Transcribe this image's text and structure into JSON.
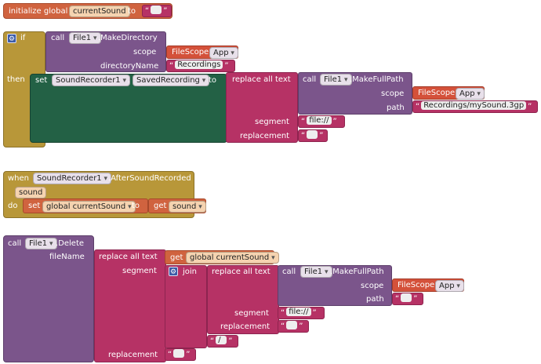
{
  "init_block": {
    "label": "initialize global",
    "var_name": "currentSound",
    "to": "to",
    "open_q": "“",
    "close_q": "”"
  },
  "if_block": {
    "if_label": "if",
    "then_label": "then",
    "call": "call",
    "component": "File1",
    "method": ".MakeDirectory",
    "scope_label": "scope",
    "fscope": "FileScope",
    "fscope_val": "App",
    "dirname_label": "directoryName",
    "dirname_val": "Recordings",
    "set": "set",
    "set_component": "SoundRecorder1",
    "dot": ".",
    "set_prop": "SavedRecording",
    "set_to": "to",
    "replace_all": "replace all text",
    "inner_call": "call",
    "inner_component": "File1",
    "inner_method": ".MakeFullPath",
    "inner_scope_label": "scope",
    "inner_fscope": "FileScope",
    "inner_fscope_val": "App",
    "path_label": "path",
    "path_val": "Recordings/mySound.3gp",
    "segment_label": "segment",
    "segment_val": "file://",
    "replacement_label": "replacement"
  },
  "event_block": {
    "when": "when",
    "component": "SoundRecorder1",
    "event": ".AfterSoundRecorded",
    "param": "sound",
    "do": "do",
    "set": "set",
    "var": "global currentSound",
    "to": "to",
    "get": "get",
    "get_var": "sound"
  },
  "delete_block": {
    "call": "call",
    "component": "File1",
    "method": ".Delete",
    "filename_label": "fileName",
    "replace_all": "replace all text",
    "get": "get",
    "get_var": "global currentSound",
    "segment_label": "segment",
    "join": "join",
    "replace_all_2": "replace all text",
    "inner_call": "call",
    "inner_component": "File1",
    "inner_method": ".MakeFullPath",
    "scope_label": "scope",
    "fscope": "FileScope",
    "fscope_val": "App",
    "path_label": "path",
    "segment_label_2": "segment",
    "segment_val": "file://",
    "replacement_label_2": "replacement",
    "slash_val": "/",
    "replacement_label": "replacement"
  }
}
